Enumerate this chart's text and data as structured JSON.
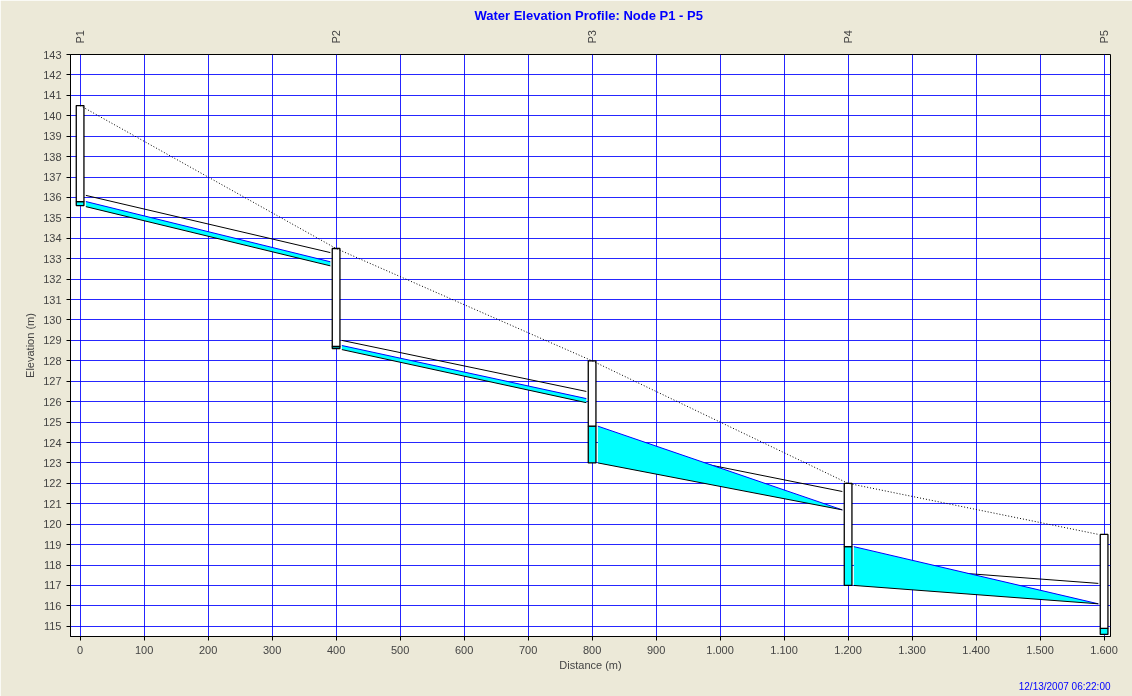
{
  "chart_data": {
    "type": "line",
    "title": "Water Elevation Profile:  Node P1 - P5",
    "xlabel": "Distance (m)",
    "ylabel": "Elevation (m)",
    "xlim": [
      -15,
      1610
    ],
    "ylim": [
      114.5,
      143
    ],
    "xticks": [
      0,
      100,
      200,
      300,
      400,
      500,
      600,
      700,
      800,
      900,
      {
        "value": 1000,
        "label": "1.000"
      },
      {
        "value": 1100,
        "label": "1.100"
      },
      {
        "value": 1200,
        "label": "1.200"
      },
      {
        "value": 1300,
        "label": "1.300"
      },
      {
        "value": 1400,
        "label": "1.400"
      },
      {
        "value": 1500,
        "label": "1.500"
      },
      {
        "value": 1600,
        "label": "1.600"
      }
    ],
    "yticks": [
      115,
      116,
      117,
      118,
      119,
      120,
      121,
      122,
      123,
      124,
      125,
      126,
      127,
      128,
      129,
      130,
      131,
      132,
      133,
      134,
      135,
      136,
      137,
      138,
      139,
      140,
      141,
      142,
      143
    ],
    "grid": true,
    "series": [
      {
        "type": "bar",
        "color": "#00ffff",
        "x": [
          0,
          400,
          800,
          1200,
          1600
        ],
        "base": [
          135.6,
          128.6,
          123,
          117,
          114.6
        ],
        "values": [
          0.2,
          0.1,
          1.8,
          1.9,
          0.3
        ]
      },
      {
        "type": "bar",
        "color": "#ffffff",
        "x": [
          0,
          400,
          800,
          1200,
          1600
        ],
        "base": [
          135.8,
          128.7,
          124.8,
          118.9,
          114.9
        ],
        "values": [
          4.7,
          4.8,
          3.2,
          3.1,
          4.6
        ]
      },
      {
        "color": "#000000",
        "line_style": "dotted",
        "x": [
          0,
          400,
          800,
          1200,
          1591
        ],
        "values": [
          140.5,
          133.5,
          128,
          122,
          119.5
        ]
      },
      {
        "color": "#000000",
        "x": [
          9,
          391
        ],
        "values": [
          136.1,
          133.3
        ]
      },
      {
        "color": "#000000",
        "x": [
          409,
          791
        ],
        "values": [
          129,
          126.5
        ]
      },
      {
        "color": "#000000",
        "x": [
          809,
          1191
        ],
        "values": [
          124,
          121.6
        ]
      },
      {
        "color": "#000000",
        "x": [
          1209,
          1591
        ],
        "values": [
          118,
          117.1
        ]
      },
      {
        "color": "#0000ff",
        "x": [
          9,
          391
        ],
        "values": [
          135.8,
          132.85
        ],
        "lower": [
          135.55,
          132.65
        ],
        "upper": [
          135.8,
          132.85
        ]
      },
      {
        "color": "#0000ff",
        "x": [
          409,
          791
        ],
        "values": [
          128.75,
          126.15
        ],
        "lower": [
          128.55,
          125.95
        ],
        "upper": [
          128.75,
          126.15
        ]
      },
      {
        "color": "#0000ff",
        "x": [
          809,
          1191
        ],
        "values": [
          124.8,
          120.7
        ],
        "lower": [
          123,
          120.7
        ],
        "upper": [
          124.8,
          120.7
        ]
      },
      {
        "color": "#0000ff",
        "x": [
          1209,
          1591
        ],
        "values": [
          118.9,
          116.1
        ],
        "lower": [
          117,
          116.1
        ],
        "upper": [
          118.9,
          116.1
        ]
      },
      {
        "color": "#000000",
        "x": [
          9,
          391
        ],
        "values": [
          135.55,
          132.65
        ]
      },
      {
        "color": "#000000",
        "x": [
          409,
          791
        ],
        "values": [
          128.55,
          125.95
        ]
      },
      {
        "color": "#000000",
        "x": [
          809,
          1191
        ],
        "values": [
          123,
          120.7
        ]
      },
      {
        "color": "#000000",
        "x": [
          1209,
          1591
        ],
        "values": [
          117,
          116.1
        ]
      }
    ],
    "annotations": [
      "P1",
      "P2",
      "P3",
      "P4",
      "P5",
      "12/13/2007 06:22:00"
    ]
  }
}
